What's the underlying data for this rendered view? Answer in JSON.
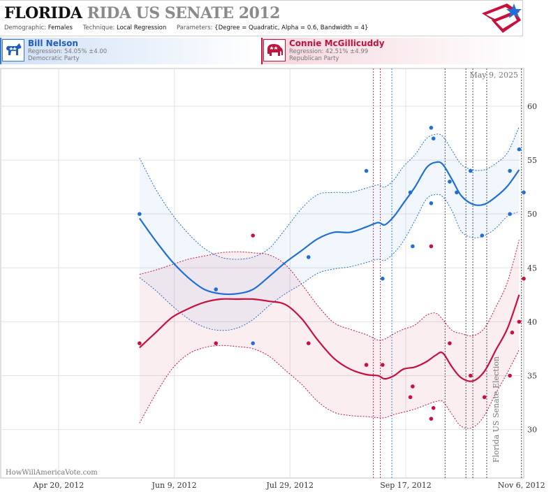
{
  "header": {
    "title_state": "FLORIDA",
    "title_rest": "RIDA US SENATE 2012",
    "demographic_label": "Demographic:",
    "demographic_value": "Females",
    "technique_label": "Technique:",
    "technique_value": "Local Regression",
    "parameters_label": "Parameters:",
    "parameters_value": "{Degree = Quadratic, Alpha = 0.6, Bandwidth = 4}"
  },
  "candidates": {
    "dem": {
      "name": "Bill Nelson",
      "regression": "Regression: 54.05% ±4.00",
      "party": "Democratic Party",
      "color": "#1f6fd6",
      "icon": "donkey-icon"
    },
    "rep": {
      "name": "Connie McGillicuddy",
      "regression": "Regression: 42.51% ±4.99",
      "party": "Republican Party",
      "color": "#c8103c",
      "icon": "elephant-icon"
    }
  },
  "watermark": "HowWillAmericaVote.com",
  "date_stamp": "May 9, 2025",
  "side_label": "Florida US Senate Election",
  "colors": {
    "dem": "#1f6fd6",
    "rep": "#c8103c",
    "grid": "#e2e2e2"
  },
  "chart_data": {
    "type": "line",
    "x_ticks": [
      "Apr 20, 2012",
      "Jun 9, 2012",
      "Jul 29, 2012",
      "Sep 17, 2012",
      "Nov 6, 2012"
    ],
    "xlim": [
      "2012-03-26",
      "2012-11-07"
    ],
    "ylim": [
      25.5,
      63.5
    ],
    "y_ticks": [
      30,
      35,
      40,
      45,
      50,
      55,
      60
    ],
    "grid": true,
    "series": [
      {
        "name": "Bill Nelson",
        "color": "#1f6fd6",
        "trend": [
          [
            "2012-05-25",
            49.6
          ],
          [
            "2012-06-01",
            47.5
          ],
          [
            "2012-06-08",
            45.6
          ],
          [
            "2012-06-15",
            44.1
          ],
          [
            "2012-06-22",
            43.0
          ],
          [
            "2012-06-29",
            42.6
          ],
          [
            "2012-07-06",
            42.6
          ],
          [
            "2012-07-13",
            43.0
          ],
          [
            "2012-07-20",
            44.2
          ],
          [
            "2012-07-27",
            45.5
          ],
          [
            "2012-08-03",
            46.6
          ],
          [
            "2012-08-10",
            47.7
          ],
          [
            "2012-08-17",
            48.3
          ],
          [
            "2012-08-24",
            48.3
          ],
          [
            "2012-08-31",
            48.8
          ],
          [
            "2012-09-05",
            49.2
          ],
          [
            "2012-09-08",
            49.0
          ],
          [
            "2012-09-12",
            49.8
          ],
          [
            "2012-09-16",
            51.0
          ],
          [
            "2012-09-21",
            52.5
          ],
          [
            "2012-09-26",
            54.3
          ],
          [
            "2012-09-30",
            54.8
          ],
          [
            "2012-10-03",
            54.6
          ],
          [
            "2012-10-07",
            53.2
          ],
          [
            "2012-10-11",
            51.7
          ],
          [
            "2012-10-16",
            50.9
          ],
          [
            "2012-10-21",
            50.9
          ],
          [
            "2012-10-26",
            51.6
          ],
          [
            "2012-10-31",
            52.6
          ],
          [
            "2012-11-05",
            54.1
          ]
        ],
        "upper": [
          [
            "2012-05-25",
            55.2
          ],
          [
            "2012-06-01",
            52.3
          ],
          [
            "2012-06-08",
            50.0
          ],
          [
            "2012-06-15",
            48.2
          ],
          [
            "2012-06-22",
            46.8
          ],
          [
            "2012-06-29",
            46.0
          ],
          [
            "2012-07-06",
            45.8
          ],
          [
            "2012-07-13",
            46.0
          ],
          [
            "2012-07-20",
            46.8
          ],
          [
            "2012-07-27",
            48.6
          ],
          [
            "2012-08-03",
            50.5
          ],
          [
            "2012-08-10",
            51.8
          ],
          [
            "2012-08-17",
            52.0
          ],
          [
            "2012-08-24",
            52.0
          ],
          [
            "2012-08-31",
            52.4
          ],
          [
            "2012-09-05",
            52.7
          ],
          [
            "2012-09-08",
            52.5
          ],
          [
            "2012-09-12",
            53.2
          ],
          [
            "2012-09-16",
            54.4
          ],
          [
            "2012-09-21",
            55.5
          ],
          [
            "2012-09-26",
            57.0
          ],
          [
            "2012-09-30",
            57.4
          ],
          [
            "2012-10-03",
            57.2
          ],
          [
            "2012-10-07",
            55.9
          ],
          [
            "2012-10-11",
            54.6
          ],
          [
            "2012-10-16",
            54.1
          ],
          [
            "2012-10-21",
            54.1
          ],
          [
            "2012-10-26",
            54.7
          ],
          [
            "2012-10-31",
            55.7
          ],
          [
            "2012-11-05",
            58.1
          ]
        ],
        "lower": [
          [
            "2012-05-25",
            44.1
          ],
          [
            "2012-06-01",
            42.9
          ],
          [
            "2012-06-08",
            41.5
          ],
          [
            "2012-06-15",
            40.3
          ],
          [
            "2012-06-22",
            39.5
          ],
          [
            "2012-06-29",
            39.2
          ],
          [
            "2012-07-06",
            39.4
          ],
          [
            "2012-07-13",
            40.2
          ],
          [
            "2012-07-20",
            41.5
          ],
          [
            "2012-07-27",
            42.6
          ],
          [
            "2012-08-03",
            43.5
          ],
          [
            "2012-08-10",
            44.5
          ],
          [
            "2012-08-17",
            44.9
          ],
          [
            "2012-08-24",
            45.1
          ],
          [
            "2012-08-31",
            45.5
          ],
          [
            "2012-09-05",
            45.8
          ],
          [
            "2012-09-08",
            45.7
          ],
          [
            "2012-09-12",
            46.4
          ],
          [
            "2012-09-16",
            47.5
          ],
          [
            "2012-09-21",
            49.4
          ],
          [
            "2012-09-26",
            51.4
          ],
          [
            "2012-09-30",
            51.8
          ],
          [
            "2012-10-03",
            51.6
          ],
          [
            "2012-10-07",
            50.3
          ],
          [
            "2012-10-11",
            48.4
          ],
          [
            "2012-10-16",
            47.8
          ],
          [
            "2012-10-21",
            48.0
          ],
          [
            "2012-10-26",
            48.7
          ],
          [
            "2012-10-31",
            49.8
          ],
          [
            "2012-11-05",
            50.2
          ]
        ],
        "points": [
          [
            "2012-05-25",
            50
          ],
          [
            "2012-06-27",
            43
          ],
          [
            "2012-07-13",
            38
          ],
          [
            "2012-08-06",
            46
          ],
          [
            "2012-08-31",
            54
          ],
          [
            "2012-09-07",
            44
          ],
          [
            "2012-09-19",
            52
          ],
          [
            "2012-09-20",
            47
          ],
          [
            "2012-09-28",
            58
          ],
          [
            "2012-09-29",
            57
          ],
          [
            "2012-09-28",
            51
          ],
          [
            "2012-10-06",
            53
          ],
          [
            "2012-10-09",
            52
          ],
          [
            "2012-10-15",
            54
          ],
          [
            "2012-10-20",
            48
          ],
          [
            "2012-11-01",
            50
          ],
          [
            "2012-11-01",
            54
          ],
          [
            "2012-11-05",
            56
          ],
          [
            "2012-11-07",
            52
          ]
        ]
      },
      {
        "name": "Connie McGillicuddy",
        "color": "#c8103c",
        "trend": [
          [
            "2012-05-25",
            37.6
          ],
          [
            "2012-06-01",
            39.0
          ],
          [
            "2012-06-08",
            40.4
          ],
          [
            "2012-06-15",
            41.2
          ],
          [
            "2012-06-22",
            41.8
          ],
          [
            "2012-06-29",
            42.1
          ],
          [
            "2012-07-06",
            42.1
          ],
          [
            "2012-07-13",
            42.1
          ],
          [
            "2012-07-20",
            41.9
          ],
          [
            "2012-07-27",
            41.6
          ],
          [
            "2012-08-03",
            40.3
          ],
          [
            "2012-08-10",
            38.3
          ],
          [
            "2012-08-17",
            36.6
          ],
          [
            "2012-08-24",
            35.6
          ],
          [
            "2012-08-31",
            35.1
          ],
          [
            "2012-09-05",
            35.0
          ],
          [
            "2012-09-08",
            34.7
          ],
          [
            "2012-09-12",
            35.0
          ],
          [
            "2012-09-16",
            35.6
          ],
          [
            "2012-09-21",
            35.8
          ],
          [
            "2012-09-26",
            36.3
          ],
          [
            "2012-09-30",
            36.9
          ],
          [
            "2012-10-03",
            37.1
          ],
          [
            "2012-10-07",
            35.8
          ],
          [
            "2012-10-11",
            34.8
          ],
          [
            "2012-10-16",
            34.5
          ],
          [
            "2012-10-21",
            35.4
          ],
          [
            "2012-10-26",
            37.4
          ],
          [
            "2012-10-31",
            39.4
          ],
          [
            "2012-11-05",
            42.5
          ]
        ],
        "upper": [
          [
            "2012-05-25",
            44.4
          ],
          [
            "2012-06-01",
            44.8
          ],
          [
            "2012-06-08",
            45.3
          ],
          [
            "2012-06-15",
            45.8
          ],
          [
            "2012-06-22",
            46.1
          ],
          [
            "2012-06-29",
            46.4
          ],
          [
            "2012-07-06",
            46.5
          ],
          [
            "2012-07-13",
            46.4
          ],
          [
            "2012-07-20",
            46.2
          ],
          [
            "2012-07-27",
            45.3
          ],
          [
            "2012-08-03",
            43.5
          ],
          [
            "2012-08-10",
            41.5
          ],
          [
            "2012-08-17",
            39.9
          ],
          [
            "2012-08-24",
            39.3
          ],
          [
            "2012-08-31",
            38.8
          ],
          [
            "2012-09-05",
            38.3
          ],
          [
            "2012-09-08",
            38.4
          ],
          [
            "2012-09-12",
            38.9
          ],
          [
            "2012-09-16",
            39.3
          ],
          [
            "2012-09-21",
            39.7
          ],
          [
            "2012-09-26",
            40.6
          ],
          [
            "2012-09-30",
            40.8
          ],
          [
            "2012-10-03",
            40.2
          ],
          [
            "2012-10-07",
            39.2
          ],
          [
            "2012-10-11",
            38.9
          ],
          [
            "2012-10-16",
            38.7
          ],
          [
            "2012-10-21",
            39.4
          ],
          [
            "2012-10-26",
            41.4
          ],
          [
            "2012-10-31",
            43.7
          ],
          [
            "2012-11-05",
            47.6
          ]
        ],
        "lower": [
          [
            "2012-05-25",
            30.6
          ],
          [
            "2012-06-01",
            33.3
          ],
          [
            "2012-06-08",
            35.6
          ],
          [
            "2012-06-15",
            37.0
          ],
          [
            "2012-06-22",
            37.6
          ],
          [
            "2012-06-29",
            37.8
          ],
          [
            "2012-07-06",
            37.7
          ],
          [
            "2012-07-13",
            37.5
          ],
          [
            "2012-07-20",
            36.8
          ],
          [
            "2012-07-27",
            35.5
          ],
          [
            "2012-08-03",
            34.2
          ],
          [
            "2012-08-10",
            32.6
          ],
          [
            "2012-08-17",
            31.6
          ],
          [
            "2012-08-24",
            31.3
          ],
          [
            "2012-08-31",
            31.2
          ],
          [
            "2012-09-05",
            31.1
          ],
          [
            "2012-09-08",
            31.1
          ],
          [
            "2012-09-12",
            31.4
          ],
          [
            "2012-09-16",
            31.6
          ],
          [
            "2012-09-21",
            31.9
          ],
          [
            "2012-09-26",
            32.3
          ],
          [
            "2012-09-30",
            32.6
          ],
          [
            "2012-10-03",
            32.6
          ],
          [
            "2012-10-07",
            31.4
          ],
          [
            "2012-10-11",
            30.3
          ],
          [
            "2012-10-16",
            30.2
          ],
          [
            "2012-10-21",
            31.3
          ],
          [
            "2012-10-26",
            33.4
          ],
          [
            "2012-10-31",
            35.3
          ],
          [
            "2012-11-05",
            37.4
          ]
        ],
        "points": [
          [
            "2012-05-25",
            38
          ],
          [
            "2012-06-27",
            38
          ],
          [
            "2012-07-13",
            48
          ],
          [
            "2012-08-06",
            38
          ],
          [
            "2012-08-31",
            36
          ],
          [
            "2012-09-07",
            36
          ],
          [
            "2012-09-19",
            33
          ],
          [
            "2012-09-20",
            34
          ],
          [
            "2012-09-28",
            31
          ],
          [
            "2012-09-28",
            47
          ],
          [
            "2012-09-29",
            32
          ],
          [
            "2012-10-06",
            38
          ],
          [
            "2012-10-15",
            35
          ],
          [
            "2012-10-21",
            33
          ],
          [
            "2012-11-01",
            35
          ],
          [
            "2012-11-02",
            39
          ],
          [
            "2012-11-05",
            40
          ],
          [
            "2012-11-07",
            44
          ]
        ]
      }
    ],
    "event_lines": [
      {
        "x": "2012-09-03",
        "color": "#c8103c"
      },
      {
        "x": "2012-09-06",
        "color": "#c8103c"
      },
      {
        "x": "2012-09-11",
        "color": "#1f6fd6"
      },
      {
        "x": "2012-10-04",
        "color": "#333333"
      },
      {
        "x": "2012-10-13",
        "color": "#333333"
      },
      {
        "x": "2012-10-16",
        "color": "#333333"
      },
      {
        "x": "2012-10-22",
        "color": "#333333"
      },
      {
        "x": "2012-11-06",
        "color": "#333333"
      }
    ]
  }
}
